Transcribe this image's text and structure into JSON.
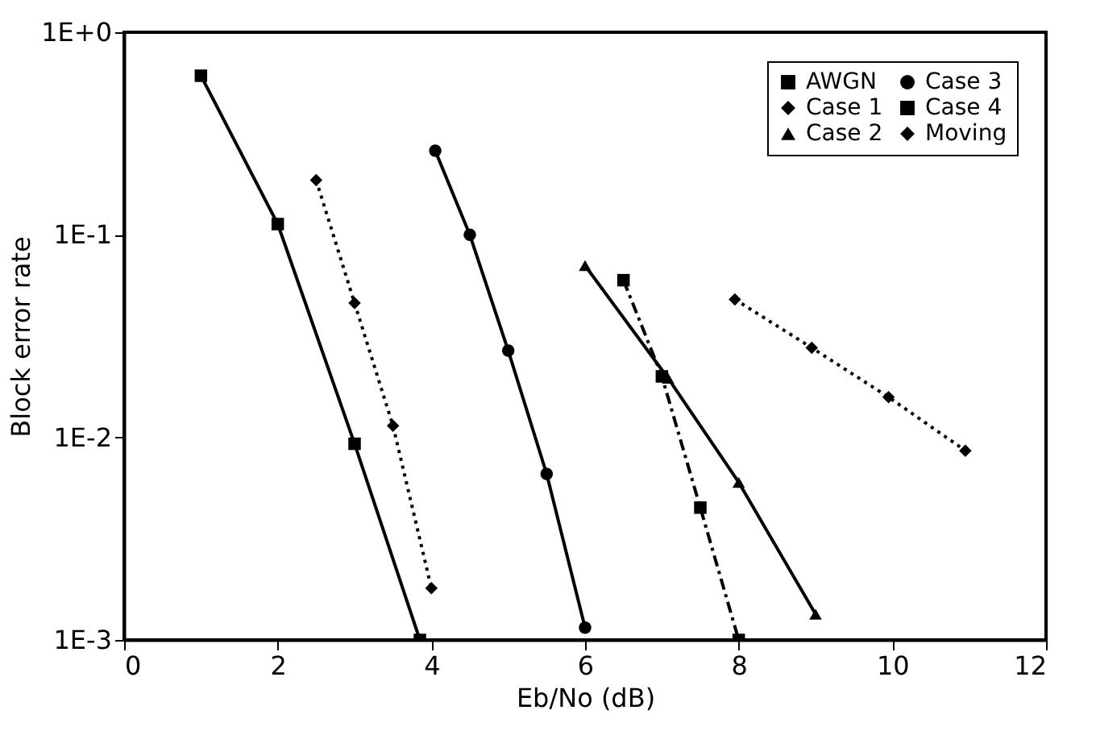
{
  "chart_data": {
    "type": "line",
    "xlabel": "Eb/No (dB)",
    "ylabel": "Block error rate",
    "log": "y",
    "xlim": [
      0,
      12
    ],
    "xticks": [
      0,
      2,
      4,
      6,
      8,
      10,
      12
    ],
    "ylim": [
      0.001,
      1
    ],
    "yticks": [
      {
        "value": 1,
        "label": "1E+0"
      },
      {
        "value": 0.1,
        "label": "1E-1"
      },
      {
        "value": 0.01,
        "label": "1E-2"
      },
      {
        "value": 0.001,
        "label": "1E-3"
      }
    ],
    "grid": false,
    "legend": "top right",
    "series": [
      {
        "name": "AWGN",
        "color": "#000000",
        "marker": "square",
        "line_style": "solid",
        "x": [
          1,
          2,
          3,
          3.85
        ],
        "values": [
          0.61,
          0.113,
          0.0093,
          0.001
        ]
      },
      {
        "name": "Case 1",
        "color": "#000000",
        "marker": "diamond",
        "line_style": "dotted",
        "x": [
          7.95,
          8.95,
          9.95,
          10.95
        ],
        "values": [
          0.048,
          0.0277,
          0.0158,
          0.0086
        ]
      },
      {
        "name": "Case 2",
        "color": "#000000",
        "marker": "triangle",
        "line_style": "solid",
        "x": [
          6,
          7.08,
          8,
          9
        ],
        "values": [
          0.0705,
          0.0196,
          0.006,
          0.00134
        ]
      },
      {
        "name": "Case 3",
        "color": "#000000",
        "marker": "circle",
        "line_style": "solid",
        "x": [
          4.05,
          4.5,
          5,
          5.5,
          6
        ],
        "values": [
          0.26,
          0.1,
          0.0268,
          0.0066,
          0.00115
        ]
      },
      {
        "name": "Case 4",
        "color": "#000000",
        "marker": "square",
        "line_style": "dashed",
        "x": [
          6.5,
          7,
          7.5,
          8
        ],
        "values": [
          0.0597,
          0.02,
          0.0045,
          0.001
        ]
      },
      {
        "name": "Moving",
        "color": "#000000",
        "marker": "diamond",
        "line_style": "dotted",
        "x": [
          2.5,
          3,
          3.5,
          4
        ],
        "values": [
          0.186,
          0.046,
          0.0114,
          0.0018
        ]
      }
    ]
  }
}
